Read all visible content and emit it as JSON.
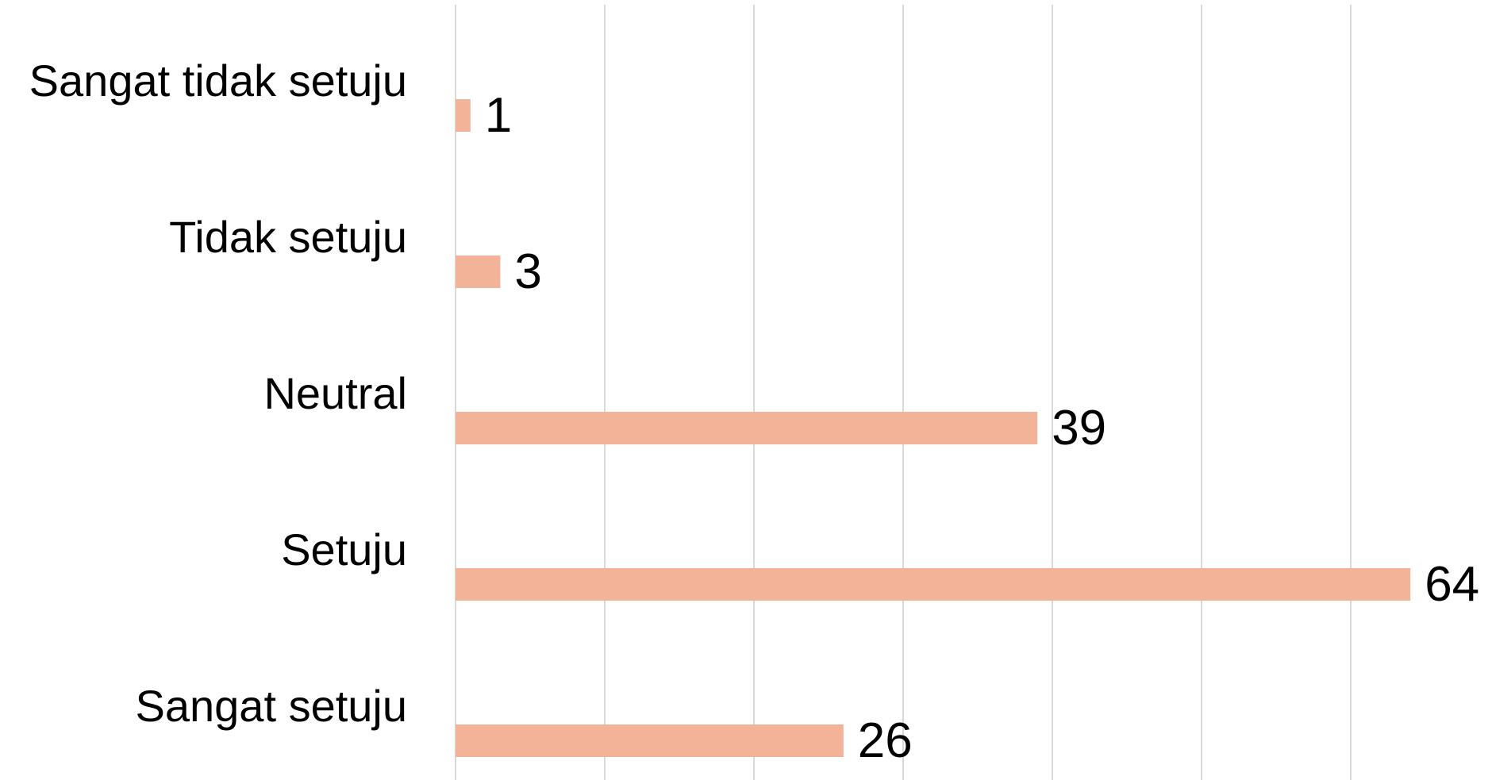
{
  "chart_data": {
    "type": "barh",
    "categories": [
      "Sangat tidak setuju",
      "Tidak setuju",
      "Neutral",
      "Setuju",
      "Sangat setuju"
    ],
    "values": [
      1,
      3,
      39,
      64,
      26
    ],
    "color": "#f2b398",
    "xlim": [
      0,
      70
    ],
    "xticks": [
      0,
      10,
      20,
      30,
      40,
      50,
      60
    ],
    "grid": true
  }
}
